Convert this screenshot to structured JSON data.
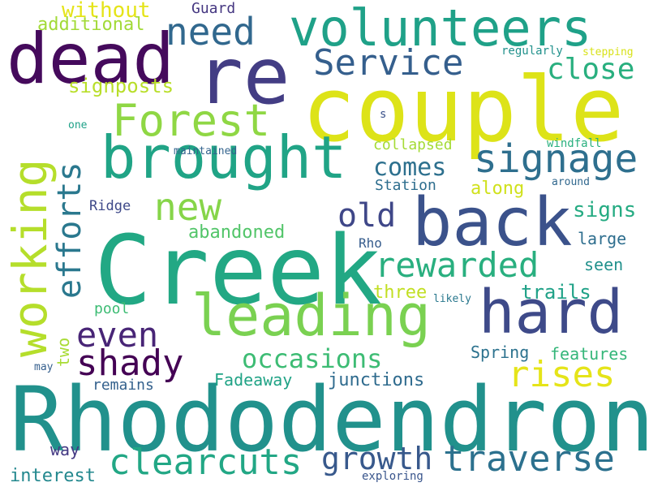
{
  "words": [
    {
      "text": "Rhododendron",
      "color": "#21918c",
      "vertical": false
    },
    {
      "text": "Creek",
      "color": "#22a884",
      "vertical": false
    },
    {
      "text": "couple",
      "color": "#dde318",
      "vertical": false
    },
    {
      "text": "re",
      "color": "#433d84",
      "vertical": false
    },
    {
      "text": "dead",
      "color": "#450a5c",
      "vertical": false
    },
    {
      "text": "volunteers",
      "color": "#1fa188",
      "vertical": false
    },
    {
      "text": "brought",
      "color": "#20a486",
      "vertical": false
    },
    {
      "text": "back",
      "color": "#3b528b",
      "vertical": false
    },
    {
      "text": "working",
      "color": "#b5de2b",
      "vertical": true
    },
    {
      "text": "leading",
      "color": "#7ad151",
      "vertical": false
    },
    {
      "text": "hard",
      "color": "#3e4a89",
      "vertical": false
    },
    {
      "text": "Forest",
      "color": "#8fd744",
      "vertical": false
    },
    {
      "text": "need",
      "color": "#31688e",
      "vertical": false
    },
    {
      "text": "Service",
      "color": "#355f8d",
      "vertical": false
    },
    {
      "text": "signage",
      "color": "#2e6f8e",
      "vertical": false
    },
    {
      "text": "efforts",
      "color": "#2a788e",
      "vertical": true
    },
    {
      "text": "rewarded",
      "color": "#29af7f",
      "vertical": false
    },
    {
      "text": "new",
      "color": "#86d549",
      "vertical": false
    },
    {
      "text": "old",
      "color": "#3f4788",
      "vertical": false
    },
    {
      "text": "even",
      "color": "#482576",
      "vertical": false
    },
    {
      "text": "shady",
      "color": "#440154",
      "vertical": false
    },
    {
      "text": "rises",
      "color": "#e5e419",
      "vertical": false
    },
    {
      "text": "clearcuts",
      "color": "#22a785",
      "vertical": false
    },
    {
      "text": "traverse",
      "color": "#2c718e",
      "vertical": false
    },
    {
      "text": "growth",
      "color": "#38598c",
      "vertical": false
    },
    {
      "text": "occasions",
      "color": "#3dbc74",
      "vertical": false
    },
    {
      "text": "close",
      "color": "#29af7f",
      "vertical": false
    },
    {
      "text": "comes",
      "color": "#2d708e",
      "vertical": false
    },
    {
      "text": "without",
      "color": "#e5e419",
      "vertical": false
    },
    {
      "text": "additional",
      "color": "#a2da37",
      "vertical": false
    },
    {
      "text": "signposts",
      "color": "#b8de29",
      "vertical": false
    },
    {
      "text": "Guard",
      "color": "#453781",
      "vertical": false
    },
    {
      "text": "regularly",
      "color": "#21918c",
      "vertical": false
    },
    {
      "text": "stepping",
      "color": "#d8e219",
      "vertical": false
    },
    {
      "text": "one",
      "color": "#1fa188",
      "vertical": false
    },
    {
      "text": "s",
      "color": "#3b528b",
      "vertical": false
    },
    {
      "text": "maintained",
      "color": "#33638d",
      "vertical": false
    },
    {
      "text": "windfall",
      "color": "#2ab07f",
      "vertical": false
    },
    {
      "text": "collapsed",
      "color": "#a5db36",
      "vertical": false
    },
    {
      "text": "Station",
      "color": "#2e6e8e",
      "vertical": false
    },
    {
      "text": "along",
      "color": "#d0e11c",
      "vertical": false
    },
    {
      "text": "around",
      "color": "#31688e",
      "vertical": false
    },
    {
      "text": "Ridge",
      "color": "#3e4989",
      "vertical": false
    },
    {
      "text": "signs",
      "color": "#25ab82",
      "vertical": false
    },
    {
      "text": "abandoned",
      "color": "#52c569",
      "vertical": false
    },
    {
      "text": "large",
      "color": "#2e6e8e",
      "vertical": false
    },
    {
      "text": "Rho",
      "color": "#365c8d",
      "vertical": false
    },
    {
      "text": "seen",
      "color": "#21918c",
      "vertical": false
    },
    {
      "text": "three",
      "color": "#c2df23",
      "vertical": false
    },
    {
      "text": "trails",
      "color": "#1fa187",
      "vertical": false
    },
    {
      "text": "likely",
      "color": "#2a788e",
      "vertical": false
    },
    {
      "text": "pool",
      "color": "#3dbc74",
      "vertical": false
    },
    {
      "text": "two",
      "color": "#a8db34",
      "vertical": true
    },
    {
      "text": "Spring",
      "color": "#2c728e",
      "vertical": false
    },
    {
      "text": "features",
      "color": "#34b679",
      "vertical": false
    },
    {
      "text": "may",
      "color": "#355f8d",
      "vertical": false
    },
    {
      "text": "remains",
      "color": "#34618d",
      "vertical": false
    },
    {
      "text": "Fadeaway",
      "color": "#20a386",
      "vertical": false
    },
    {
      "text": "junctions",
      "color": "#2f6b8e",
      "vertical": false
    },
    {
      "text": "way",
      "color": "#443983",
      "vertical": false
    },
    {
      "text": "interest",
      "color": "#23888e",
      "vertical": false
    },
    {
      "text": "exploring",
      "color": "#39558c",
      "vertical": false
    }
  ]
}
